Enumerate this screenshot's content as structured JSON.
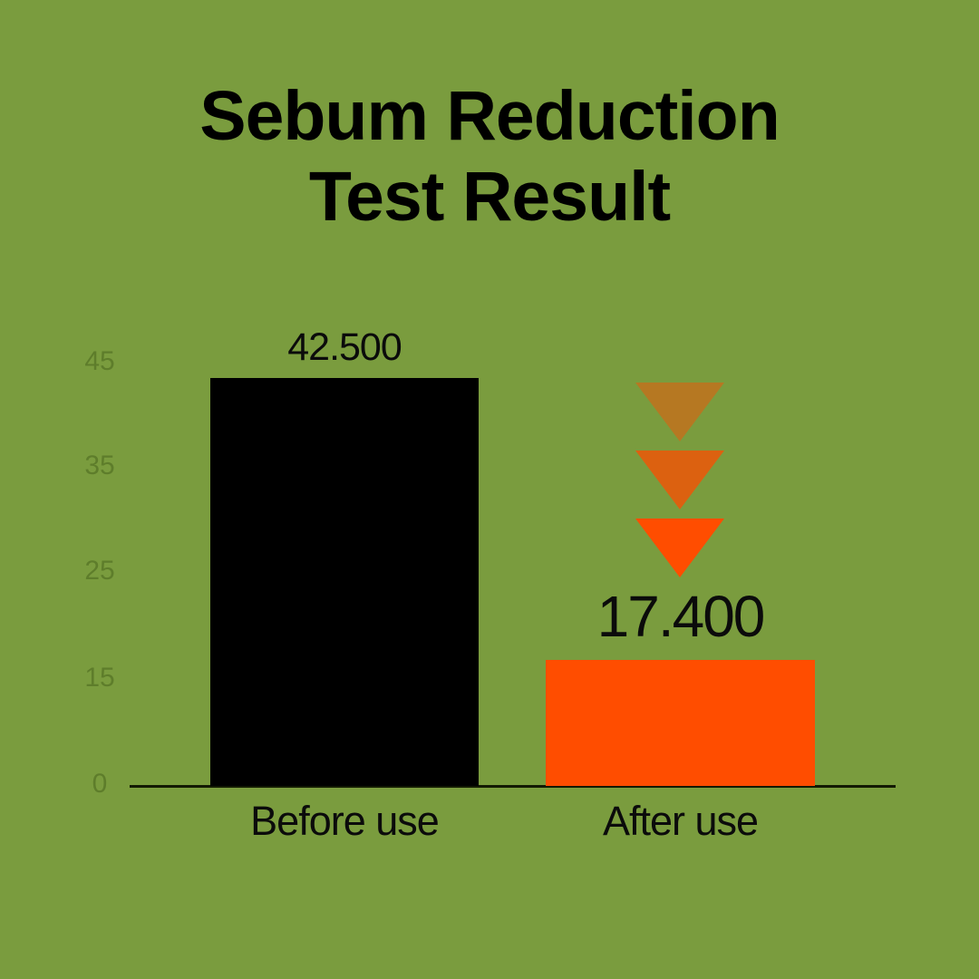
{
  "title": {
    "line1": "Sebum Reduction",
    "line2": "Test Result"
  },
  "chart_data": {
    "type": "bar",
    "title": "Sebum Reduction Test Result",
    "categories": [
      "Before use",
      "After use"
    ],
    "values": [
      42500,
      17400
    ],
    "value_labels": [
      "42.500",
      "17.400"
    ],
    "yticks": [
      "45",
      "35",
      "25",
      "15",
      "0"
    ],
    "ylim": [
      0,
      45
    ],
    "xlabel": "",
    "ylabel": "",
    "grid": false,
    "legend": false,
    "yticks_evenly_spaced": true,
    "bar_colors": [
      "#000000",
      "#FF4D00"
    ]
  },
  "arrows": {
    "icon": "triangle-down",
    "count": 3,
    "opacities": [
      0.45,
      0.74,
      1
    ]
  },
  "colors": {
    "background": "#7A9C3E",
    "title_text": "#000000",
    "label_text": "#0B0B0B",
    "tick_label": "#5E7D2B",
    "axis_line": "#131A02",
    "bar_before": "#000000",
    "bar_after": "#FF4D00",
    "arrow": "#FF4D00"
  }
}
